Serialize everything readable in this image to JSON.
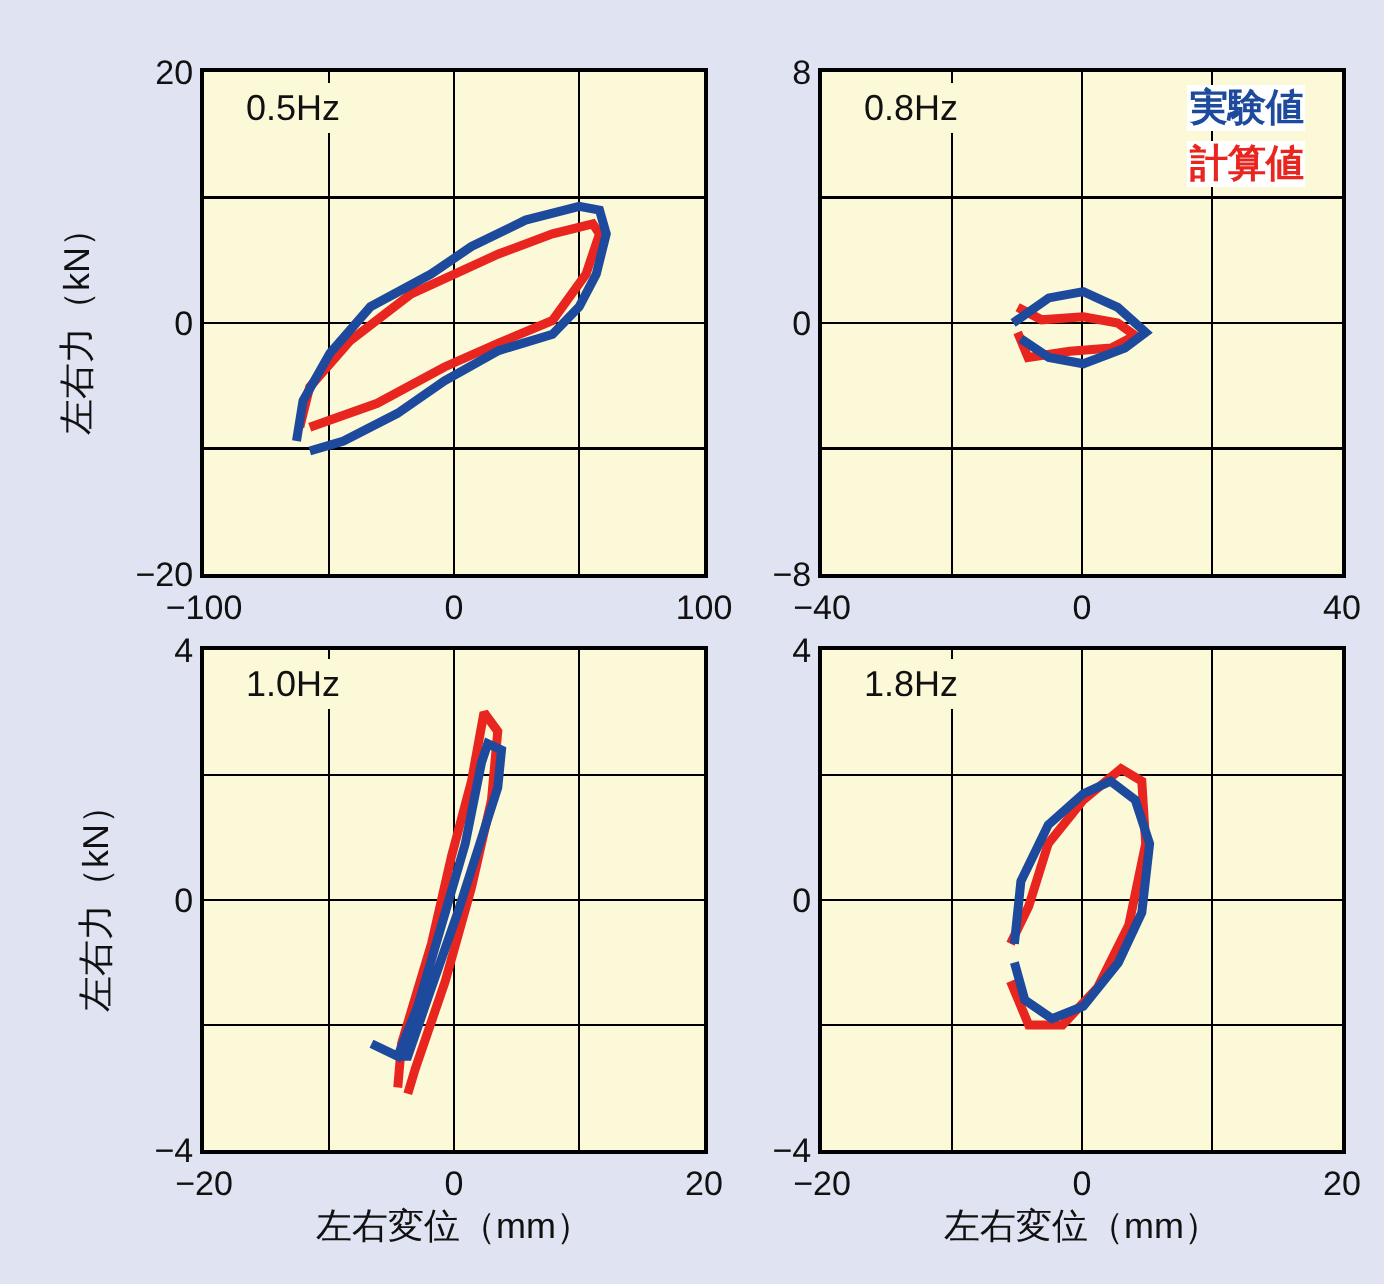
{
  "chart_data": [
    {
      "type": "line",
      "ylabel": "左右力（kN）",
      "annotations": [
        "0.5Hz"
      ],
      "xlim": [
        -100,
        100
      ],
      "xticks": [
        -100,
        {
          "value": -50,
          "label": null
        },
        0,
        {
          "value": 50,
          "label": null
        },
        100
      ],
      "ylim": [
        -20,
        20
      ],
      "yticks": [
        -20,
        {
          "value": -10,
          "label": null
        },
        0,
        {
          "value": 10,
          "label": null
        },
        20
      ],
      "grid": true,
      "line_style": "solid",
      "series": [
        {
          "color": "#e8251f",
          "x": [
            -61.7,
            -57.7,
            -41.5,
            -17.3,
            17.8,
            39.4,
            55.5,
            58.2,
            52.8,
            39.4,
            17.8,
            -3.8,
            -30.7,
            -57.7
          ],
          "values": [
            -8.3,
            -5.1,
            -1.4,
            2.3,
            5.5,
            7.1,
            7.9,
            7.1,
            3.9,
            0.2,
            -1.6,
            -3.5,
            -6.4,
            -8.3
          ]
        },
        {
          "color": "#1d4a9c",
          "x": [
            -63,
            -60.4,
            -49.6,
            -33.4,
            -9.2,
            7,
            28.6,
            50.1,
            58.2,
            60.9,
            56.9,
            50.1,
            39.4,
            17.8,
            -3.8,
            -22.6,
            -44.2,
            -57.7
          ],
          "values": [
            -9.4,
            -6.2,
            -2.4,
            1.3,
            3.9,
            6.1,
            8.2,
            9.3,
            9,
            7.1,
            3.9,
            1.3,
            -0.9,
            -2.2,
            -4.6,
            -7.2,
            -9.4,
            -10.2
          ]
        }
      ]
    },
    {
      "type": "line",
      "annotations": [
        "0.8Hz"
      ],
      "legend": "top right",
      "xlim": [
        -40,
        40
      ],
      "xticks": [
        -40,
        {
          "value": -20,
          "label": null
        },
        0,
        {
          "value": 20,
          "label": null
        },
        40
      ],
      "ylim": [
        -8,
        8
      ],
      "yticks": [
        -8,
        {
          "value": -4,
          "label": null
        },
        0,
        {
          "value": 4,
          "label": null
        },
        8
      ],
      "grid": true,
      "line_style": "solid",
      "series": [
        {
          "name": "計算値",
          "color": "#e8251f",
          "x": [
            -9.9,
            -6.2,
            0.2,
            5.5,
            8.2,
            4.5,
            -1.9,
            -8.3,
            -9.9
          ],
          "values": [
            0.5,
            0.1,
            0.2,
            0,
            -0.4,
            -0.8,
            -0.9,
            -1.1,
            -0.3
          ]
        },
        {
          "name": "実験値",
          "color": "#1d4a9c",
          "x": [
            -10.6,
            -5.1,
            0.2,
            5.5,
            9.8,
            6.6,
            0.2,
            -5.1,
            -9.4
          ],
          "values": [
            0,
            0.8,
            1,
            0.5,
            -0.3,
            -0.8,
            -1.3,
            -1.1,
            -0.5
          ]
        }
      ]
    },
    {
      "type": "line",
      "xlabel": "左右変位（mm）",
      "ylabel": "左右力（kN）",
      "annotations": [
        "1.0Hz"
      ],
      "xlim": [
        -20,
        20
      ],
      "xticks": [
        -20,
        {
          "value": -10,
          "label": null
        },
        0,
        {
          "value": 10,
          "label": null
        },
        20
      ],
      "ylim": [
        -4,
        4
      ],
      "yticks": [
        -4,
        {
          "value": -2,
          "label": null
        },
        0,
        {
          "value": 2,
          "label": null
        },
        4
      ],
      "grid": true,
      "line_style": "solid",
      "series": [
        {
          "color": "#e8251f",
          "x": [
            -4.5,
            -4.2,
            -1.8,
            -0.2,
            1.4,
            2.4,
            3.5,
            3,
            1.4,
            -0.7,
            -3.1,
            -3.7
          ],
          "values": [
            -3,
            -2.3,
            -0.7,
            0.7,
            1.9,
            3,
            2.7,
            1.6,
            0.2,
            -1.3,
            -2.7,
            -3.1
          ]
        },
        {
          "color": "#1d4a9c",
          "x": [
            -6.6,
            -4.5,
            -2.9,
            -0.7,
            0.9,
            2.2,
            2.7,
            3.8,
            3.5,
            1.9,
            0.3,
            -1.8,
            -3.7,
            -4.5
          ],
          "values": [
            -2.3,
            -2.5,
            -1.7,
            -0.2,
            0.9,
            2.2,
            2.5,
            2.4,
            1.8,
            0.8,
            -0.2,
            -1.4,
            -2.5,
            -2.5
          ]
        }
      ]
    },
    {
      "type": "line",
      "xlabel": "左右変位（mm）",
      "annotations": [
        "1.8Hz"
      ],
      "xlim": [
        -20,
        20
      ],
      "xticks": [
        -20,
        {
          "value": -10,
          "label": null
        },
        0,
        {
          "value": 10,
          "label": null
        },
        20
      ],
      "ylim": [
        -4,
        4
      ],
      "yticks": [
        -4,
        {
          "value": -2,
          "label": null
        },
        0,
        {
          "value": 2,
          "label": null
        },
        4
      ],
      "grid": true,
      "line_style": "solid",
      "series": [
        {
          "color": "#e8251f",
          "x": [
            -5.5,
            -4.1,
            -1.5,
            1.2,
            3.6,
            4.9,
            4.6,
            3,
            0.1,
            -2.6,
            -4.1,
            -5.5
          ],
          "values": [
            -1.3,
            -2,
            -2,
            -1.4,
            -0.4,
            0.9,
            1.9,
            2.1,
            1.6,
            0.9,
            -0.1,
            -0.7
          ]
        },
        {
          "color": "#1d4a9c",
          "x": [
            -5.2,
            -4.7,
            -2.6,
            0.1,
            2.2,
            4.1,
            5.2,
            4.6,
            2.8,
            0.1,
            -2.3,
            -4.4,
            -5.2
          ],
          "values": [
            -0.7,
            0.3,
            1.2,
            1.7,
            1.9,
            1.6,
            0.9,
            -0.2,
            -1,
            -1.7,
            -1.9,
            -1.6,
            -1
          ]
        }
      ]
    }
  ]
}
